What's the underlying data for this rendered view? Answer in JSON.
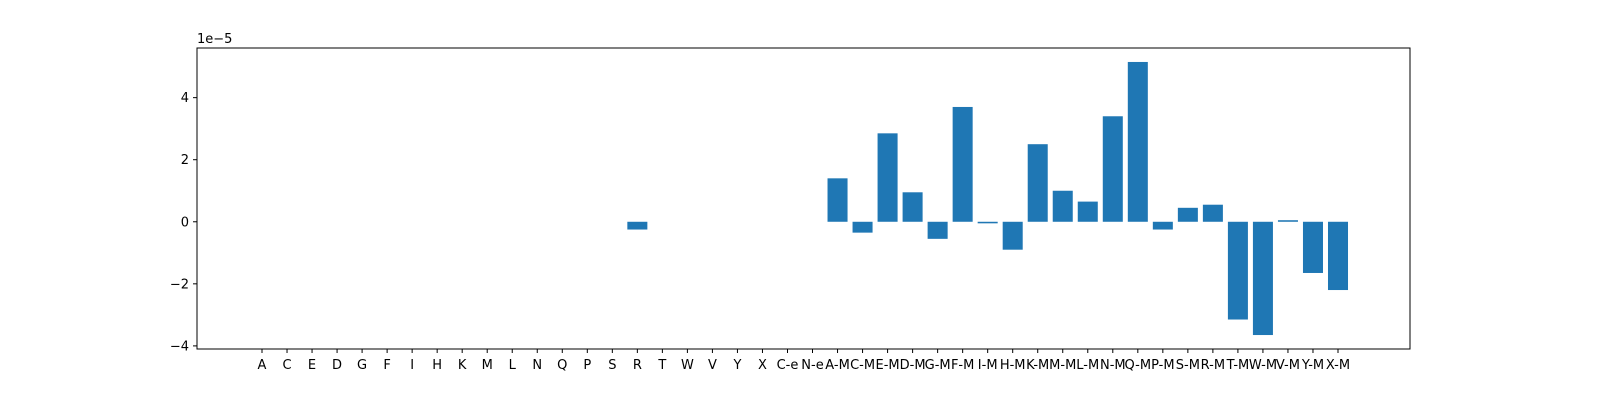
{
  "chart_data": {
    "type": "bar",
    "title": "",
    "xlabel": "",
    "ylabel": "",
    "y_offset_label": "1e−5",
    "y_scale": 1e-05,
    "ylim": [
      -4.1,
      5.6
    ],
    "yticks": [
      -4,
      -2,
      0,
      2,
      4
    ],
    "ytick_labels": [
      "−4",
      "−2",
      "0",
      "2",
      "4"
    ],
    "grid": false,
    "bar_color": "#1f77b4",
    "categories": [
      "A",
      "C",
      "E",
      "D",
      "G",
      "F",
      "I",
      "H",
      "K",
      "M",
      "L",
      "N",
      "Q",
      "P",
      "S",
      "R",
      "T",
      "W",
      "V",
      "Y",
      "X",
      "C-e",
      "N-e",
      "A-M",
      "C-M",
      "E-M",
      "D-M",
      "G-M",
      "F-M",
      "I-M",
      "H-M",
      "K-M",
      "M-M",
      "L-M",
      "N-M",
      "Q-M",
      "P-M",
      "S-M",
      "R-M",
      "T-M",
      "W-M",
      "V-M",
      "Y-M",
      "X-M"
    ],
    "values": [
      0,
      0,
      0,
      0,
      0,
      0,
      0,
      0,
      0,
      0,
      0,
      0,
      0,
      0,
      0,
      -0.25,
      0,
      0,
      0,
      0,
      0,
      0,
      0,
      1.4,
      -0.35,
      2.85,
      0.95,
      -0.55,
      3.7,
      -0.05,
      -0.9,
      2.5,
      1.0,
      0.65,
      3.4,
      5.15,
      -0.25,
      0.45,
      0.55,
      -3.15,
      -3.65,
      0.05,
      -1.65,
      -2.2
    ]
  }
}
